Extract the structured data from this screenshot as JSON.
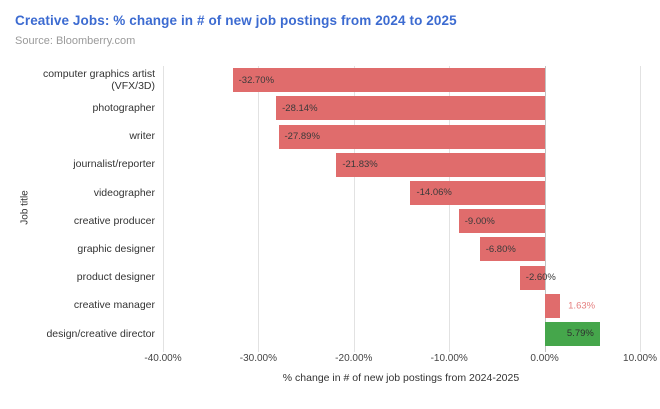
{
  "header": {
    "title": "Creative Jobs: % change in # of new job postings from 2024 to 2025",
    "source": "Source: Bloomberry.com"
  },
  "chart_data": {
    "type": "bar",
    "orientation": "horizontal",
    "title": "Creative Jobs: % change in # of new job postings from 2024 to 2025",
    "subtitle": "Source: Bloomberry.com",
    "xlabel": "% change in # of new job postings from 2024-2025",
    "ylabel": "Job title",
    "xlim": [
      -40,
      10
    ],
    "grid": true,
    "x_ticks": [
      -40,
      -30,
      -20,
      -10,
      0,
      10
    ],
    "x_tick_labels": [
      "-40.00%",
      "-30.00%",
      "-20.00%",
      "-10.00%",
      "0.00%",
      "10.00%"
    ],
    "categories": [
      "computer graphics artist (VFX/3D)",
      "photographer",
      "writer",
      "journalist/reporter",
      "videographer",
      "creative producer",
      "graphic designer",
      "product designer",
      "creative manager",
      "design/creative director"
    ],
    "values": [
      -32.7,
      -28.14,
      -27.89,
      -21.83,
      -14.06,
      -9.0,
      -6.8,
      -2.6,
      1.63,
      5.79
    ],
    "bar_labels": [
      "-32.70%",
      "-28.14%",
      "-27.89%",
      "-21.83%",
      "-14.06%",
      "-9.00%",
      "-6.80%",
      "-2.60%",
      "1.63%",
      "5.79%"
    ],
    "bar_colors": [
      "#e06c6c",
      "#e06c6c",
      "#e06c6c",
      "#e06c6c",
      "#e06c6c",
      "#e06c6c",
      "#e06c6c",
      "#e06c6c",
      "#e06c6c",
      "#45a64b"
    ],
    "label_placements": [
      "inside-left",
      "inside-left",
      "inside-left",
      "inside-left",
      "inside-left",
      "inside-left",
      "inside-left",
      "inside-left",
      "outside-right",
      "inside-right"
    ],
    "label_colors": [
      "#3a3a3a",
      "#3a3a3a",
      "#3a3a3a",
      "#3a3a3a",
      "#3a3a3a",
      "#3a3a3a",
      "#3a3a3a",
      "#3a3a3a",
      "#e57f7f",
      "#2f2f2f"
    ],
    "colors": {
      "title": "#3c6bd1",
      "source_text": "#9a9a9a",
      "bar_negative": "#e06c6c",
      "bar_positive": "#45a64b",
      "gridline": "#e2e2e2",
      "zero_line": "#c2c2c2",
      "axis_text": "#444444"
    },
    "legend": "none"
  }
}
